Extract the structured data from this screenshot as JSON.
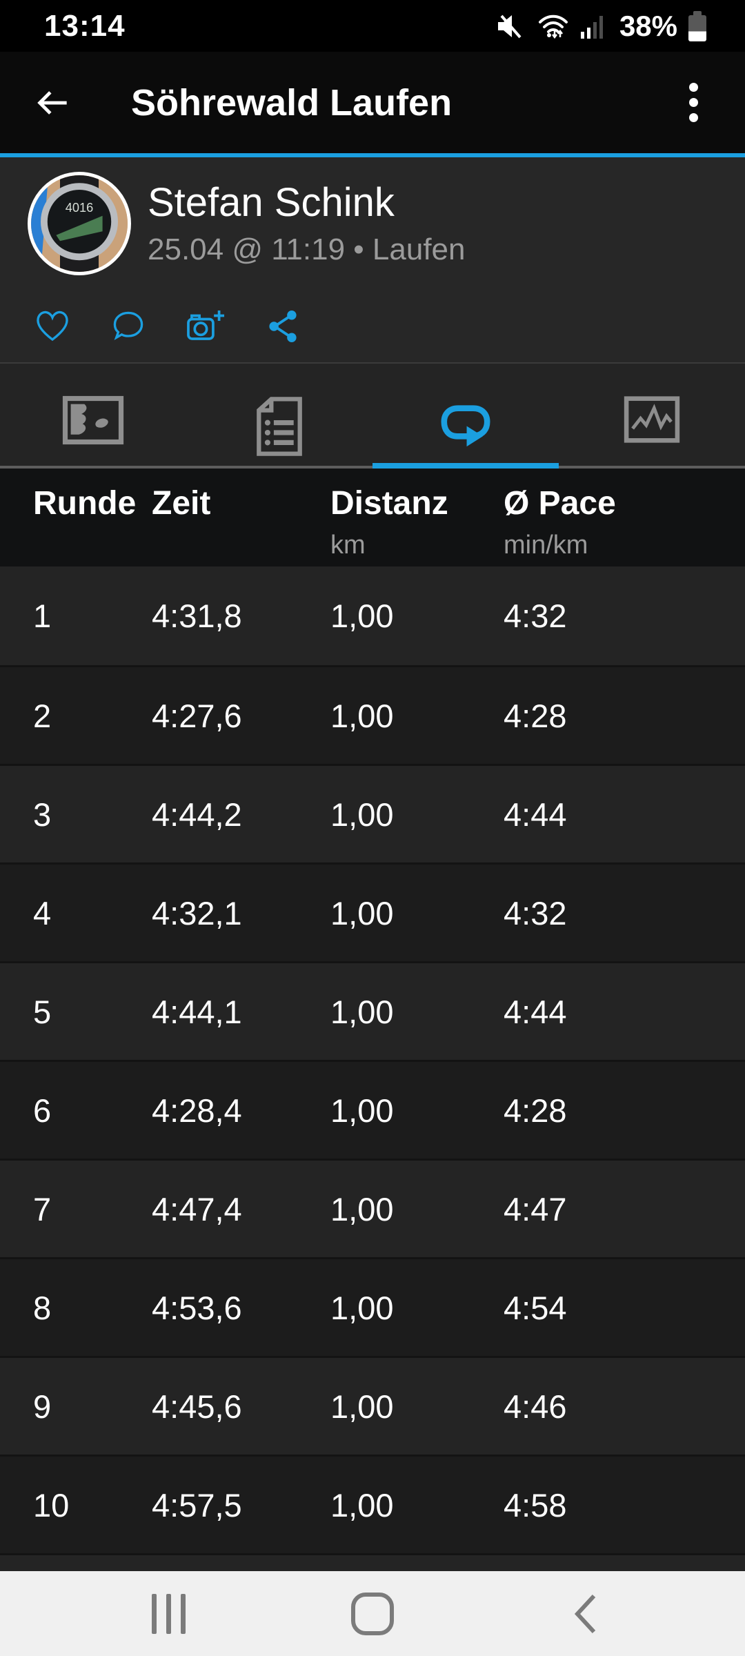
{
  "colors": {
    "accent": "#1b9fe0",
    "nav_bar_bg": "#f0f0f0"
  },
  "status_bar": {
    "time": "13:14",
    "battery_percent": "38%",
    "battery_level": 38,
    "icons": [
      "mute-icon",
      "wifi-icon",
      "signal-icon",
      "battery-icon"
    ]
  },
  "header": {
    "title": "Söhrewald Laufen",
    "icons": [
      "back-arrow-icon",
      "kebab-menu-icon"
    ]
  },
  "athlete": {
    "name": "Stefan Schink",
    "meta": "25.04 @ 11:19 • Laufen"
  },
  "actions": {
    "icons": [
      "heart-icon",
      "comment-icon",
      "camera-add-icon",
      "share-icon"
    ]
  },
  "tabs": {
    "active_index": 2,
    "items": [
      {
        "icon": "map-icon"
      },
      {
        "icon": "details-icon"
      },
      {
        "icon": "laps-icon"
      },
      {
        "icon": "charts-icon"
      }
    ]
  },
  "laps_table": {
    "columns": [
      {
        "label": "Runde",
        "unit": ""
      },
      {
        "label": "Zeit",
        "unit": ""
      },
      {
        "label": "Distanz",
        "unit": "km"
      },
      {
        "label": "Ø Pace",
        "unit": "min/km"
      }
    ],
    "rows": [
      {
        "runde": "1",
        "zeit": "4:31,8",
        "distanz": "1,00",
        "pace": "4:32"
      },
      {
        "runde": "2",
        "zeit": "4:27,6",
        "distanz": "1,00",
        "pace": "4:28"
      },
      {
        "runde": "3",
        "zeit": "4:44,2",
        "distanz": "1,00",
        "pace": "4:44"
      },
      {
        "runde": "4",
        "zeit": "4:32,1",
        "distanz": "1,00",
        "pace": "4:32"
      },
      {
        "runde": "5",
        "zeit": "4:44,1",
        "distanz": "1,00",
        "pace": "4:44"
      },
      {
        "runde": "6",
        "zeit": "4:28,4",
        "distanz": "1,00",
        "pace": "4:28"
      },
      {
        "runde": "7",
        "zeit": "4:47,4",
        "distanz": "1,00",
        "pace": "4:47"
      },
      {
        "runde": "8",
        "zeit": "4:53,6",
        "distanz": "1,00",
        "pace": "4:54"
      },
      {
        "runde": "9",
        "zeit": "4:45,6",
        "distanz": "1,00",
        "pace": "4:46"
      },
      {
        "runde": "10",
        "zeit": "4:57,5",
        "distanz": "1,00",
        "pace": "4:58"
      }
    ]
  },
  "nav_bar": {
    "icons": [
      "recents-icon",
      "home-icon",
      "back-icon"
    ]
  }
}
